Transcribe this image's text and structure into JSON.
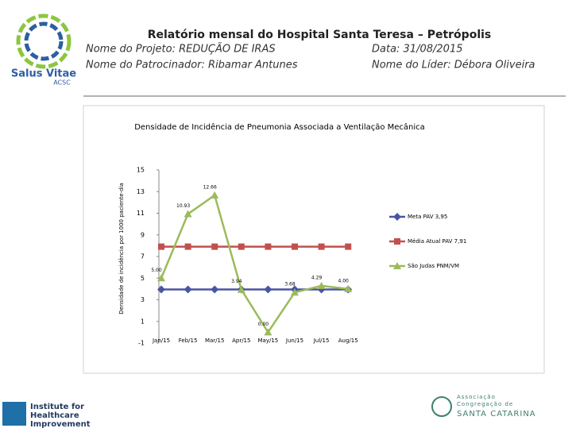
{
  "header": {
    "title": "Relatório mensal do Hospital Santa Teresa – Petrópolis",
    "project": "Nome do Projeto: REDUÇÃO DE IRAS",
    "date": "Data: 31/08/2015",
    "sponsor": "Nome do Patrocinador: Ribamar Antunes",
    "leader": "Nome do Líder: Débora Oliveira",
    "logo_name": "Salus Vitae",
    "logo_sub": "ACSC"
  },
  "footer": {
    "ihi": [
      "Institute for",
      "Healthcare",
      "Improvement"
    ],
    "acsc": [
      "Associação",
      "Congregação de",
      "SANTA CATARINA"
    ]
  },
  "chart_data": {
    "type": "line",
    "title": "Densidade de Incidência de Pneumonia Associada a Ventilação Mecânica",
    "y_label": "Densidade de incidência por 1000 paciente-dia",
    "categories": [
      "Jan/15",
      "Feb/15",
      "Mar/15",
      "Apr/15",
      "May/15",
      "Jun/15",
      "Jul/15",
      "Aug/15"
    ],
    "ylim": [
      -1,
      15
    ],
    "yticks": [
      -1,
      1,
      3,
      5,
      7,
      9,
      11,
      13,
      15
    ],
    "grid": false,
    "series": [
      {
        "name": "Meta PAV 3,95",
        "color": "#4a55a2",
        "marker": "diamond",
        "values": [
          3.95,
          3.95,
          3.95,
          3.95,
          3.95,
          3.95,
          3.95,
          3.95
        ]
      },
      {
        "name": "Média Atual PAV 7,91",
        "color": "#c0504d",
        "marker": "square",
        "values": [
          7.91,
          7.91,
          7.91,
          7.91,
          7.91,
          7.91,
          7.91,
          7.91
        ]
      },
      {
        "name": "São Judas PNM/VM",
        "color": "#9bbb59",
        "marker": "triangle",
        "values": [
          5,
          10.93,
          12.66,
          3.94,
          0,
          3.68,
          4.29,
          4
        ],
        "value_labels": [
          "5.00",
          "10.93",
          "12.66",
          "3.94",
          "0.00",
          "3.68",
          "4.29",
          "4.00"
        ]
      }
    ]
  }
}
